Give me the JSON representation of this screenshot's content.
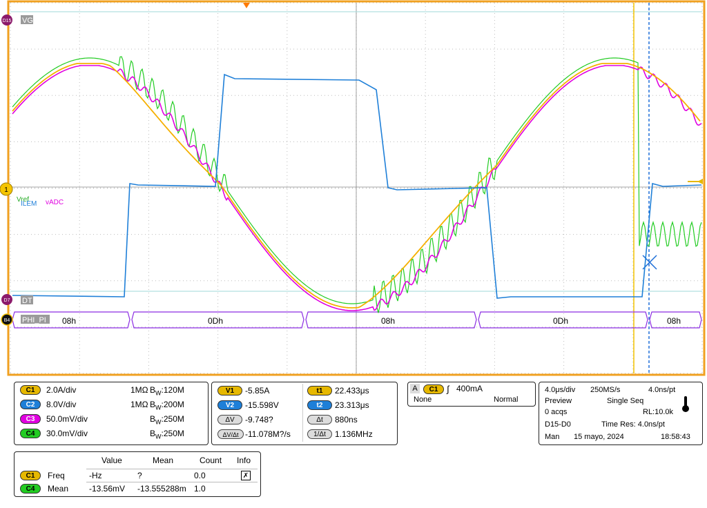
{
  "graticule": {
    "channel_labels": {
      "d15": "D15",
      "vg": "VG",
      "d7": "D7",
      "dt": "DT",
      "b4": "B4",
      "bus": "PHI_PI",
      "ch1_marker": "1",
      "trace_labels": [
        "Vref",
        "ILEM",
        "vADC"
      ]
    },
    "bus_values": [
      "08h",
      "0Dh",
      "08h",
      "0Dh",
      "08h"
    ]
  },
  "colors": {
    "frame": "#f0a020",
    "c1": "#e6b800",
    "c2": "#1e7fd8",
    "c3": "#e000e0",
    "c4": "#22cc22",
    "bus": "#8a2be2",
    "grid": "#c8c8c8"
  },
  "channels_panel": {
    "rows": [
      {
        "chip": "C1",
        "scale": "2.0A/div",
        "imp": "1MΩ",
        "bw_b": "B",
        "bw_w": "W",
        "bw": ":120M"
      },
      {
        "chip": "C2",
        "scale": "8.0V/div",
        "imp": "1MΩ",
        "bw_b": "B",
        "bw_w": "W",
        "bw": ":200M"
      },
      {
        "chip": "C3",
        "scale": "50.0mV/div",
        "imp": "",
        "bw_b": "B",
        "bw_w": "W",
        "bw": ":250M"
      },
      {
        "chip": "C4",
        "scale": "30.0mV/div",
        "imp": "",
        "bw_b": "B",
        "bw_w": "W",
        "bw": ":250M"
      }
    ]
  },
  "cursors_panel": {
    "v1_label": "V1",
    "v1": "-5.85A",
    "v2_label": "V2",
    "v2": "-15.598V",
    "dv_label": "ΔV",
    "dv": "-9.748?",
    "dvdt_label": "ΔV/Δt",
    "dvdt": "-11.078M?/s",
    "t1_label": "t1",
    "t1": "22.433μs",
    "t2_label": "t2",
    "t2": "23.313μs",
    "dt_label": "Δt",
    "dt": "880ns",
    "inv_label": "1/Δt",
    "inv": "1.136MHz"
  },
  "trigger_panel": {
    "label": "A",
    "chip": "C1",
    "level": "400mA",
    "coupling": "None",
    "mode": "Normal"
  },
  "acq_panel": {
    "timebase": "4.0μs/div",
    "rate": "250MS/s",
    "res": "4.0ns/pt",
    "state": "Preview",
    "mode": "Single Seq",
    "acqs": "0 acqs",
    "rl": "RL:10.0k",
    "digital": "D15-D0",
    "timeres": "Time Res: 4.0ns/pt",
    "day": "Man",
    "date": "15 mayo, 2024",
    "time": "18:58:43"
  },
  "measure_panel": {
    "headers": [
      "Value",
      "Mean",
      "Count",
      "Info"
    ],
    "rows": [
      {
        "chip": "C1",
        "name": "Freq",
        "value": "-Hz",
        "mean": "?",
        "count": "0.0"
      },
      {
        "chip": "C4",
        "name": "Mean",
        "value": "-13.56mV",
        "mean": "-13.555288m",
        "count": "1.0"
      }
    ]
  }
}
